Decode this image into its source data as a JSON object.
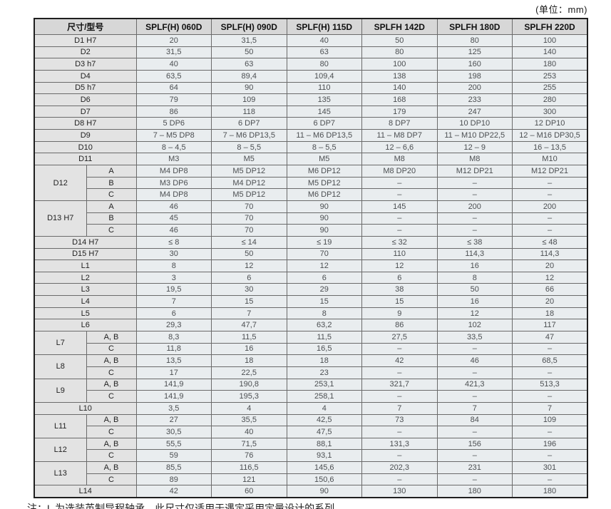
{
  "unit_note": "(单位：mm)",
  "footnote": "注：L 为选装英制导程轴承，此尺寸仅适用于遇定采用定量设计的系列",
  "colors": {
    "header_bg": "#d7d7d7",
    "row_label_bg": "#e3e3e3",
    "data_cell_bg": "#e9edef",
    "inner_border": "#6b6b6b",
    "outer_border": "#1f1f1f"
  },
  "table": {
    "header": {
      "dim_col": "尺寸/型号",
      "models": [
        "SPLF(H) 060D",
        "SPLF(H) 090D",
        "SPLF(H) 115D",
        "SPLFH 142D",
        "SPLFH 180D",
        "SPLFH 220D"
      ]
    },
    "groups": [
      {
        "label": "D1 H7",
        "rows": [
          {
            "values": [
              "20",
              "31,5",
              "40",
              "50",
              "80",
              "100"
            ]
          }
        ]
      },
      {
        "label": "D2",
        "rows": [
          {
            "values": [
              "31,5",
              "50",
              "63",
              "80",
              "125",
              "140"
            ]
          }
        ]
      },
      {
        "label": "D3 h7",
        "rows": [
          {
            "values": [
              "40",
              "63",
              "80",
              "100",
              "160",
              "180"
            ]
          }
        ]
      },
      {
        "label": "D4",
        "rows": [
          {
            "values": [
              "63,5",
              "89,4",
              "109,4",
              "138",
              "198",
              "253"
            ]
          }
        ]
      },
      {
        "label": "D5 h7",
        "rows": [
          {
            "values": [
              "64",
              "90",
              "110",
              "140",
              "200",
              "255"
            ]
          }
        ]
      },
      {
        "label": "D6",
        "rows": [
          {
            "values": [
              "79",
              "109",
              "135",
              "168",
              "233",
              "280"
            ]
          }
        ]
      },
      {
        "label": "D7",
        "rows": [
          {
            "values": [
              "86",
              "118",
              "145",
              "179",
              "247",
              "300"
            ]
          }
        ]
      },
      {
        "label": "D8 H7",
        "rows": [
          {
            "values": [
              "5 DP6",
              "6 DP7",
              "6 DP7",
              "8 DP7",
              "10 DP10",
              "12 DP10"
            ]
          }
        ]
      },
      {
        "label": "D9",
        "rows": [
          {
            "values": [
              "7 – M5 DP8",
              "7 – M6 DP13,5",
              "11 – M6 DP13,5",
              "11 – M8 DP7",
              "11 – M10 DP22,5",
              "12 – M16 DP30,5"
            ]
          }
        ]
      },
      {
        "label": "D10",
        "rows": [
          {
            "values": [
              "8 – 4,5",
              "8 – 5,5",
              "8 – 5,5",
              "12 – 6,6",
              "12 – 9",
              "16 – 13,5"
            ]
          }
        ]
      },
      {
        "label": "D11",
        "rows": [
          {
            "values": [
              "M3",
              "M5",
              "M5",
              "M8",
              "M8",
              "M10"
            ]
          }
        ]
      },
      {
        "label": "D12",
        "rows": [
          {
            "sub": "A",
            "values": [
              "M4 DP8",
              "M5 DP12",
              "M6 DP12",
              "M8 DP20",
              "M12 DP21",
              "M12 DP21"
            ]
          },
          {
            "sub": "B",
            "values": [
              "M3 DP6",
              "M4 DP12",
              "M5 DP12",
              "–",
              "–",
              "–"
            ]
          },
          {
            "sub": "C",
            "values": [
              "M4 DP8",
              "M5 DP12",
              "M6 DP12",
              "–",
              "–",
              "–"
            ]
          }
        ]
      },
      {
        "label": "D13 H7",
        "rows": [
          {
            "sub": "A",
            "values": [
              "46",
              "70",
              "90",
              "145",
              "200",
              "200"
            ]
          },
          {
            "sub": "B",
            "values": [
              "45",
              "70",
              "90",
              "–",
              "–",
              "–"
            ]
          },
          {
            "sub": "C",
            "values": [
              "46",
              "70",
              "90",
              "–",
              "–",
              "–"
            ]
          }
        ]
      },
      {
        "label": "D14 H7",
        "rows": [
          {
            "values": [
              "≤ 8",
              "≤ 14",
              "≤ 19",
              "≤ 32",
              "≤ 38",
              "≤ 48"
            ]
          }
        ]
      },
      {
        "label": "D15 H7",
        "rows": [
          {
            "values": [
              "30",
              "50",
              "70",
              "110",
              "114,3",
              "114,3"
            ]
          }
        ]
      },
      {
        "label": "L1",
        "rows": [
          {
            "values": [
              "8",
              "12",
              "12",
              "12",
              "16",
              "20"
            ]
          }
        ]
      },
      {
        "label": "L2",
        "rows": [
          {
            "values": [
              "3",
              "6",
              "6",
              "6",
              "8",
              "12"
            ]
          }
        ]
      },
      {
        "label": "L3",
        "rows": [
          {
            "values": [
              "19,5",
              "30",
              "29",
              "38",
              "50",
              "66"
            ]
          }
        ]
      },
      {
        "label": "L4",
        "rows": [
          {
            "values": [
              "7",
              "15",
              "15",
              "15",
              "16",
              "20"
            ]
          }
        ]
      },
      {
        "label": "L5",
        "rows": [
          {
            "values": [
              "6",
              "7",
              "8",
              "9",
              "12",
              "18"
            ]
          }
        ]
      },
      {
        "label": "L6",
        "rows": [
          {
            "values": [
              "29,3",
              "47,7",
              "63,2",
              "86",
              "102",
              "117"
            ]
          }
        ]
      },
      {
        "label": "L7",
        "rows": [
          {
            "sub": "A, B",
            "values": [
              "8,3",
              "11,5",
              "11,5",
              "27,5",
              "33,5",
              "47"
            ]
          },
          {
            "sub": "C",
            "values": [
              "11,8",
              "16",
              "16,5",
              "–",
              "–",
              "–"
            ]
          }
        ]
      },
      {
        "label": "L8",
        "rows": [
          {
            "sub": "A, B",
            "values": [
              "13,5",
              "18",
              "18",
              "42",
              "46",
              "68,5"
            ]
          },
          {
            "sub": "C",
            "values": [
              "17",
              "22,5",
              "23",
              "–",
              "–",
              "–"
            ]
          }
        ]
      },
      {
        "label": "L9",
        "rows": [
          {
            "sub": "A, B",
            "values": [
              "141,9",
              "190,8",
              "253,1",
              "321,7",
              "421,3",
              "513,3"
            ]
          },
          {
            "sub": "C",
            "values": [
              "141,9",
              "195,3",
              "258,1",
              "–",
              "–",
              "–"
            ]
          }
        ]
      },
      {
        "label": "L10",
        "rows": [
          {
            "values": [
              "3,5",
              "4",
              "4",
              "7",
              "7",
              "7"
            ]
          }
        ]
      },
      {
        "label": "L11",
        "rows": [
          {
            "sub": "A, B",
            "values": [
              "27",
              "35,5",
              "42,5",
              "73",
              "84",
              "109"
            ]
          },
          {
            "sub": "C",
            "values": [
              "30,5",
              "40",
              "47,5",
              "–",
              "–",
              "–"
            ]
          }
        ]
      },
      {
        "label": "L12",
        "rows": [
          {
            "sub": "A, B",
            "values": [
              "55,5",
              "71,5",
              "88,1",
              "131,3",
              "156",
              "196"
            ]
          },
          {
            "sub": "C",
            "values": [
              "59",
              "76",
              "93,1",
              "–",
              "–",
              "–"
            ]
          }
        ]
      },
      {
        "label": "L13",
        "rows": [
          {
            "sub": "A, B",
            "values": [
              "85,5",
              "116,5",
              "145,6",
              "202,3",
              "231",
              "301"
            ]
          },
          {
            "sub": "C",
            "values": [
              "89",
              "121",
              "150,6",
              "–",
              "–",
              "–"
            ]
          }
        ]
      },
      {
        "label": "L14",
        "rows": [
          {
            "values": [
              "42",
              "60",
              "90",
              "130",
              "180",
              "180"
            ]
          }
        ]
      }
    ]
  }
}
